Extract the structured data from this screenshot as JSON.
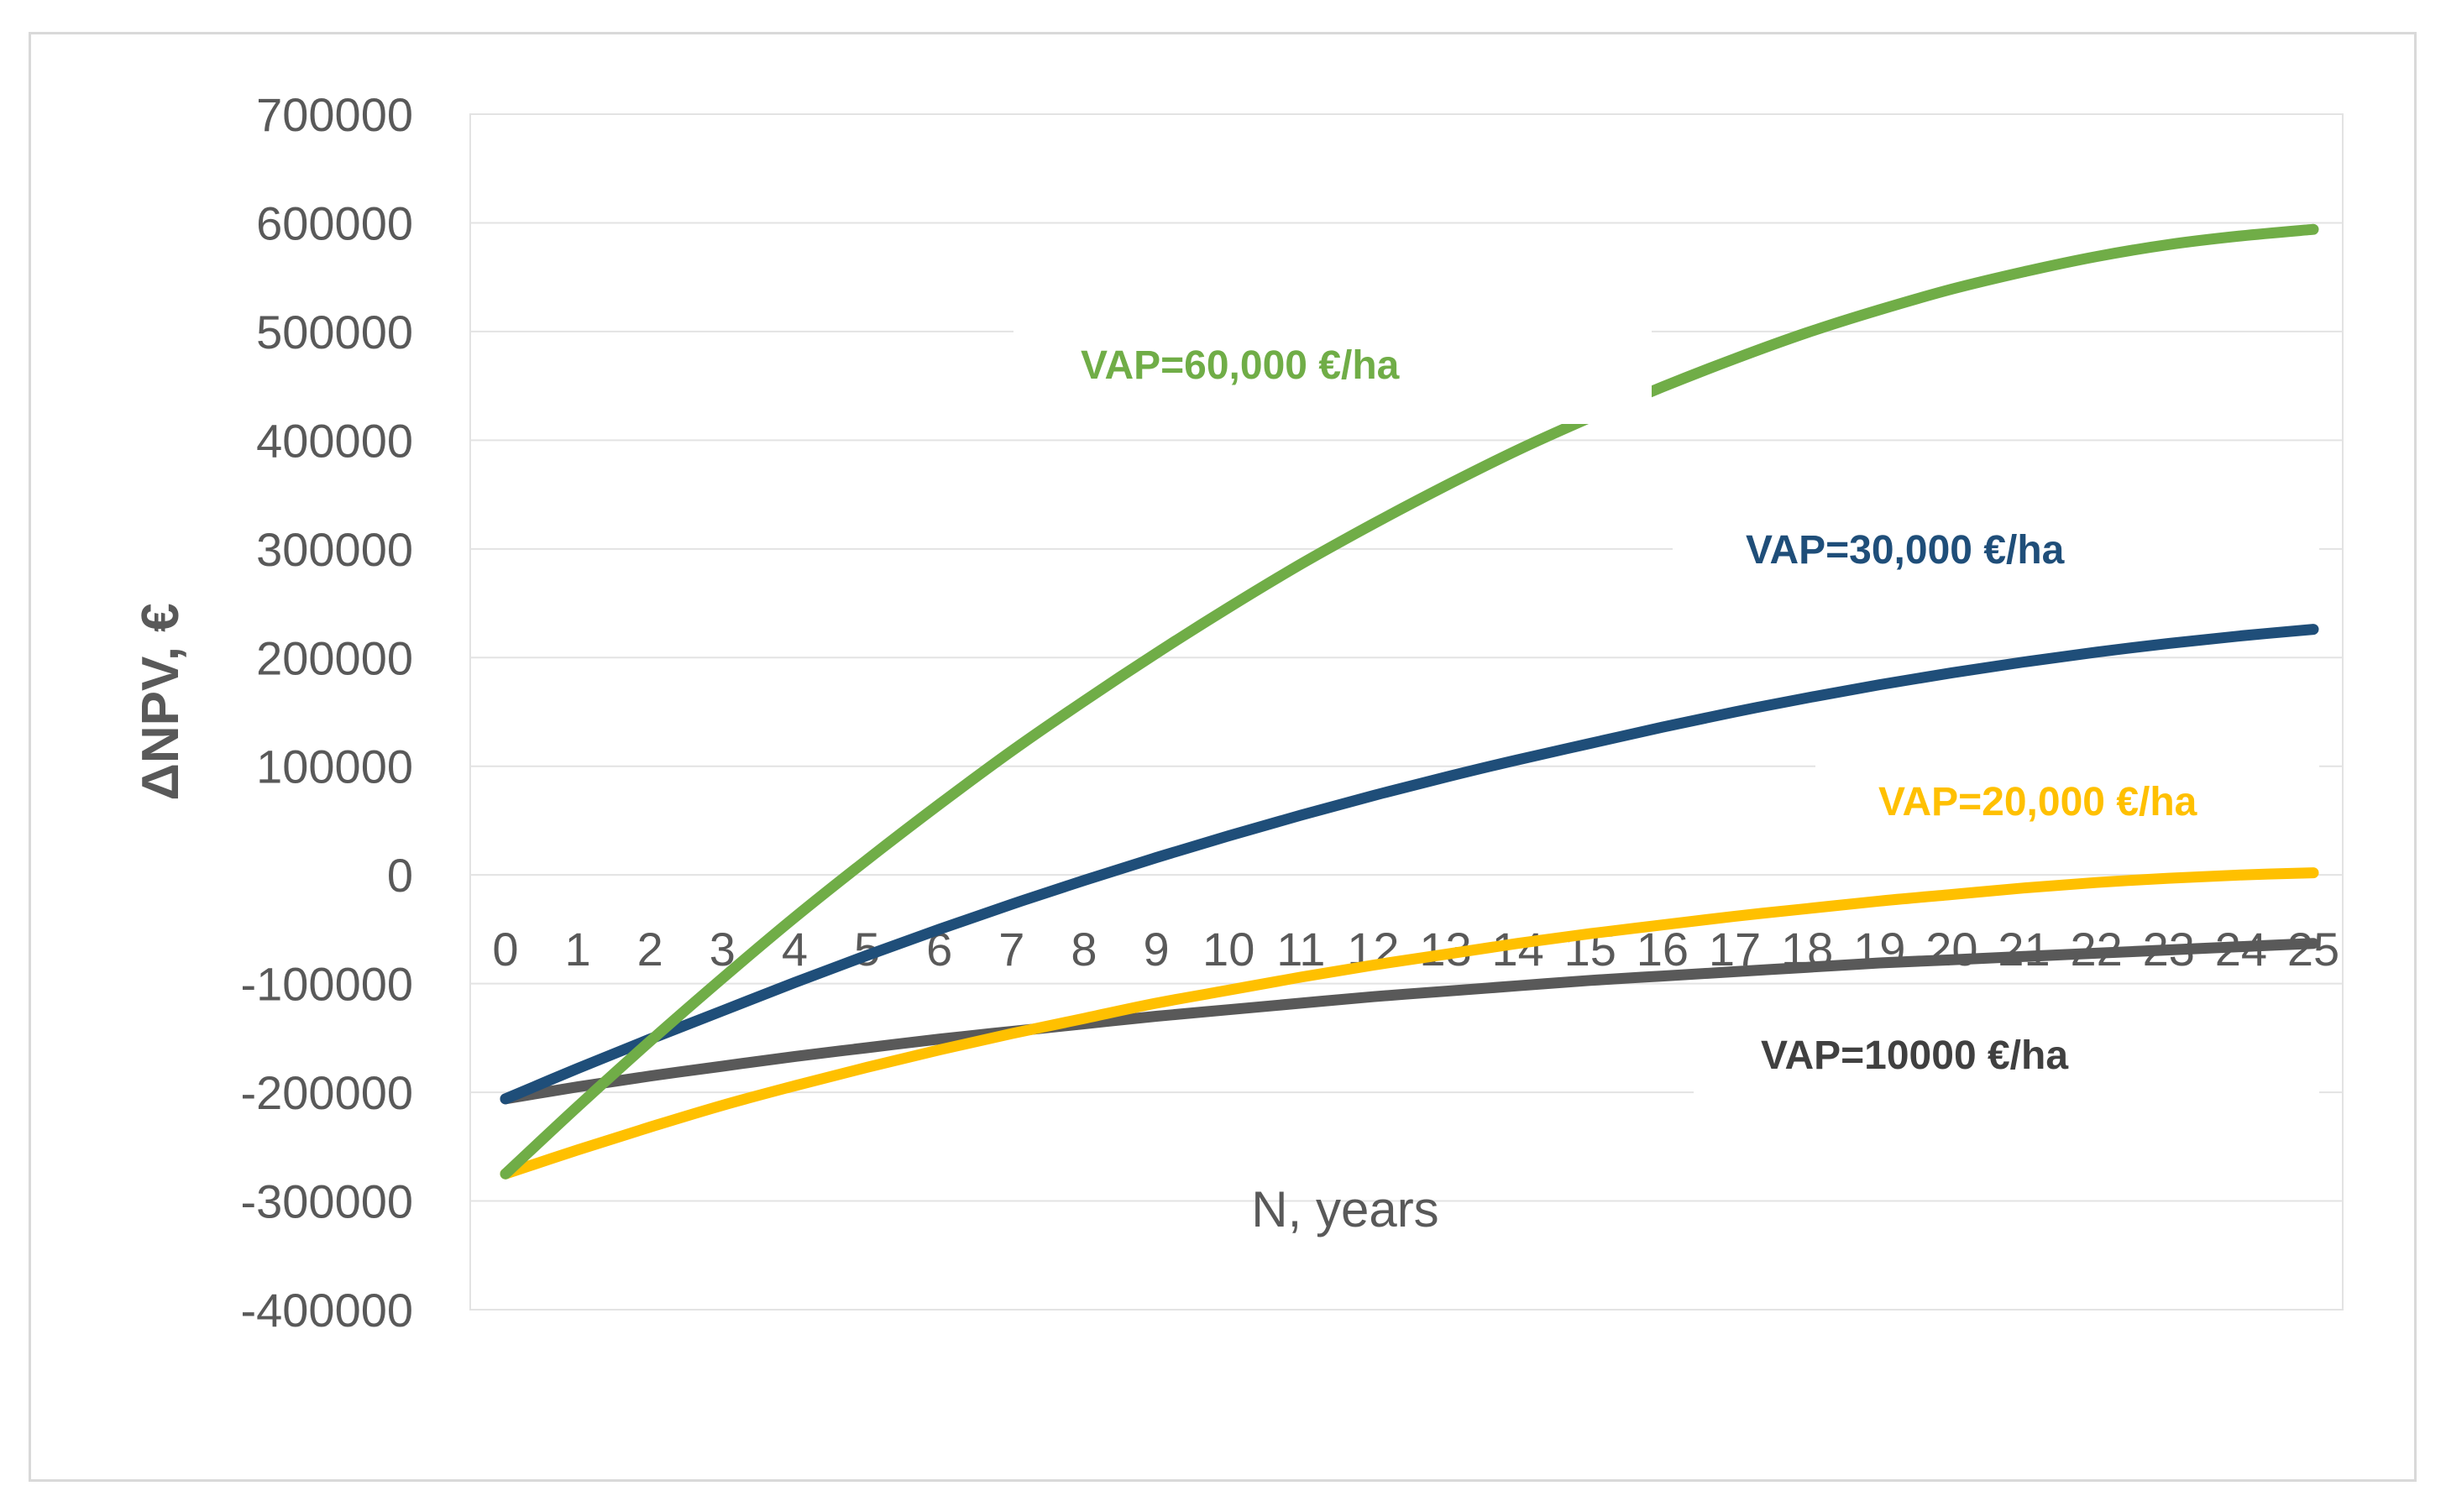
{
  "chart_data": {
    "type": "line",
    "title": "",
    "xlabel": "N, years",
    "ylabel": "ΔNPV, €",
    "ylim": [
      -400000,
      700000
    ],
    "yticks": [
      700000,
      600000,
      500000,
      400000,
      300000,
      200000,
      100000,
      0,
      -100000,
      -200000,
      -300000,
      -400000
    ],
    "ytick_labels": [
      "700000",
      "600000",
      "500000",
      "400000",
      "300000",
      "200000",
      "100000",
      "0",
      "-100000",
      "-200000",
      "-300000",
      "-400000"
    ],
    "xlim": [
      0,
      25
    ],
    "x": [
      0,
      1,
      2,
      3,
      4,
      5,
      6,
      7,
      8,
      9,
      10,
      11,
      12,
      13,
      14,
      15,
      16,
      17,
      18,
      19,
      20,
      21,
      22,
      23,
      24,
      25
    ],
    "xtick_labels": [
      "0",
      "1",
      "2",
      "3",
      "4",
      "5",
      "6",
      "7",
      "8",
      "9",
      "10",
      "11",
      "12",
      "13",
      "14",
      "15",
      "16",
      "17",
      "18",
      "19",
      "20",
      "21",
      "22",
      "23",
      "24",
      "25"
    ],
    "grid": true,
    "series": [
      {
        "name": "VAP=10000 €/ha",
        "color": "#595959",
        "values": [
          -206000,
          -195000,
          -185000,
          -176000,
          -167000,
          -159000,
          -151000,
          -144000,
          -137000,
          -130000,
          -124000,
          -118000,
          -112000,
          -107000,
          -102000,
          -97000,
          -93000,
          -89000,
          -85000,
          -81000,
          -78000,
          -75000,
          -72000,
          -69000,
          -66000,
          -63000
        ]
      },
      {
        "name": "VAP=20,000 €/ha",
        "color": "#ffc000",
        "values": [
          -275000,
          -253000,
          -232000,
          -212000,
          -194000,
          -177000,
          -161000,
          -146000,
          -132000,
          -118000,
          -106000,
          -94000,
          -83000,
          -73000,
          -63000,
          -54000,
          -46000,
          -38000,
          -31000,
          -24000,
          -18000,
          -12000,
          -7000,
          -3000,
          0,
          2000
        ]
      },
      {
        "name": "VAP=30,000 €/ha",
        "color": "#1f4e79",
        "values": [
          -206000,
          -178000,
          -151000,
          -125000,
          -99000,
          -74000,
          -50000,
          -27000,
          -5000,
          16000,
          36000,
          55000,
          73000,
          90000,
          106000,
          121000,
          136000,
          150000,
          163000,
          175000,
          186000,
          196000,
          205000,
          213000,
          220000,
          226000
        ]
      },
      {
        "name": "VAP=60,000 €/ha",
        "color": "#70ad47",
        "values": [
          -275000,
          -213000,
          -153000,
          -95000,
          -39000,
          14000,
          65000,
          114000,
          160000,
          204000,
          246000,
          286000,
          323000,
          358000,
          391000,
          421000,
          449000,
          475000,
          499000,
          520000,
          539000,
          555000,
          569000,
          580000,
          588000,
          594000
        ]
      }
    ],
    "annotations": [
      {
        "text": "VAP=60,000 €/ha",
        "color": "#70ad47"
      },
      {
        "text": "VAP=30,000 €/ha",
        "color": "#1f4e79"
      },
      {
        "text": "VAP=20,000 €/ha",
        "color": "#ffc000"
      },
      {
        "text": "VAP=10000 €/ha",
        "color": "#404040"
      }
    ]
  }
}
